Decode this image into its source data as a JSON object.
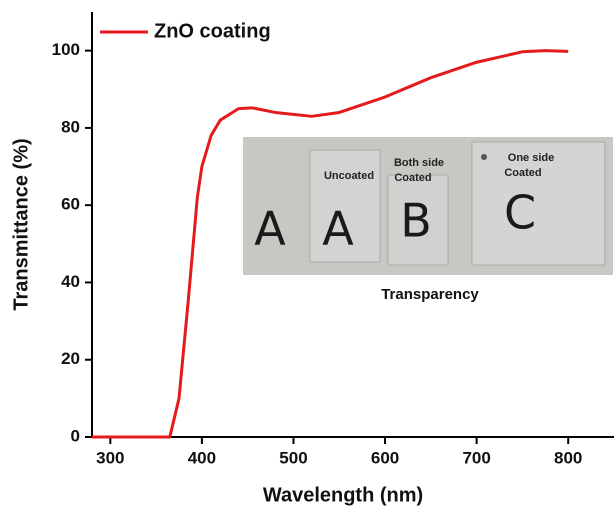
{
  "chart_data": {
    "type": "line",
    "x_label": "Wavelength (nm)",
    "y_label": "Transmittance (%)",
    "x": [
      280,
      365,
      375,
      385,
      395,
      400,
      410,
      420,
      440,
      455,
      480,
      520,
      550,
      600,
      650,
      700,
      750,
      775,
      800
    ],
    "series": [
      {
        "name": "ZnO coating",
        "color": "#e41a1c",
        "values": [
          0,
          0,
          10,
          35,
          62,
          70,
          78,
          82,
          85,
          85.2,
          84,
          83,
          84,
          88,
          93,
          97,
          99.7,
          100,
          99.8
        ]
      }
    ],
    "xlim": [
      280,
      850
    ],
    "ylim": [
      0,
      110
    ],
    "xticks": [
      300,
      400,
      500,
      600,
      700,
      800
    ],
    "yticks": [
      0,
      20,
      40,
      60,
      80,
      100
    ],
    "legend": "upper left",
    "inset": {
      "caption": "Transparency",
      "labels": [
        "Uncoated",
        "Both side",
        "Coated",
        "One side",
        "Coated"
      ],
      "letters": [
        "A",
        "A",
        "B",
        "C"
      ]
    }
  }
}
